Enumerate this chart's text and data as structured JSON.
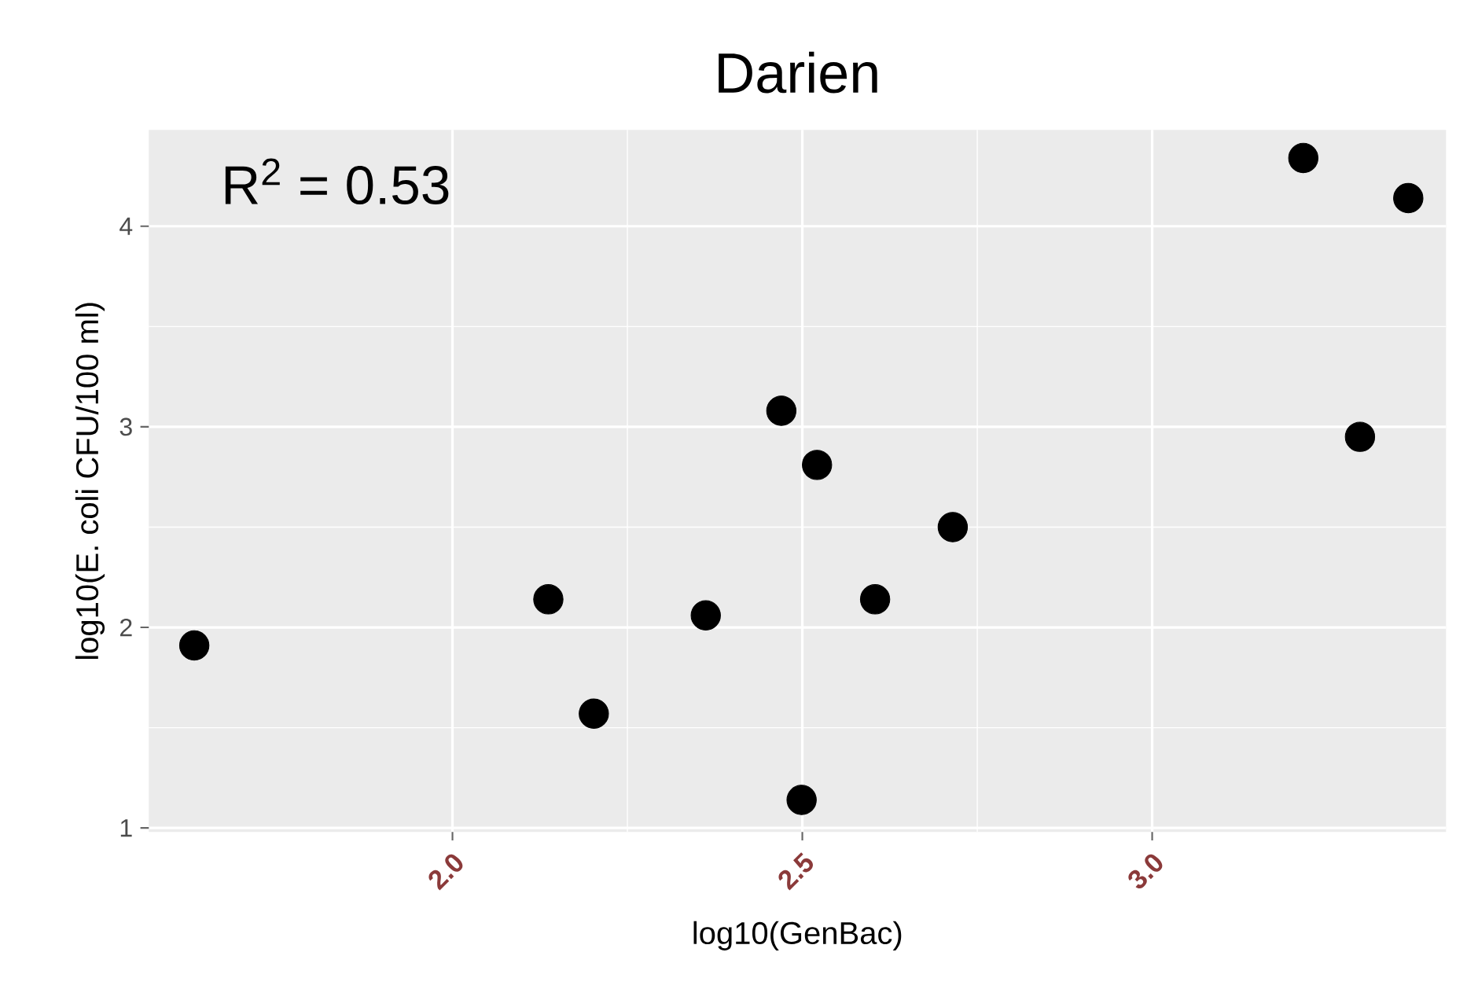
{
  "chart_data": {
    "type": "scatter",
    "title": "Darien",
    "xlabel": "log10(GenBac)",
    "ylabel": "log10(E. coli CFU/100 ml)",
    "annotations": [
      "R$^{2}$ = 0.53"
    ],
    "x": [
      1.631,
      2.137,
      2.202,
      2.362,
      2.47,
      2.521,
      2.499,
      2.604,
      2.715,
      3.216,
      3.297,
      3.366
    ],
    "values": [
      1.91,
      2.14,
      1.57,
      2.06,
      3.08,
      2.81,
      1.14,
      2.14,
      2.5,
      4.34,
      2.95,
      4.14
    ],
    "color": "#000000",
    "marker": "circle",
    "xlim": [
      1.566,
      3.42
    ],
    "ylim": [
      0.98,
      4.48
    ],
    "xticks": [
      {
        "value": 2.0,
        "label": "2.0"
      },
      {
        "value": 2.5,
        "label": "2.5"
      },
      {
        "value": 3.0,
        "label": "3.0"
      }
    ],
    "yticks": [
      1,
      2,
      3,
      4
    ],
    "grid": true
  }
}
